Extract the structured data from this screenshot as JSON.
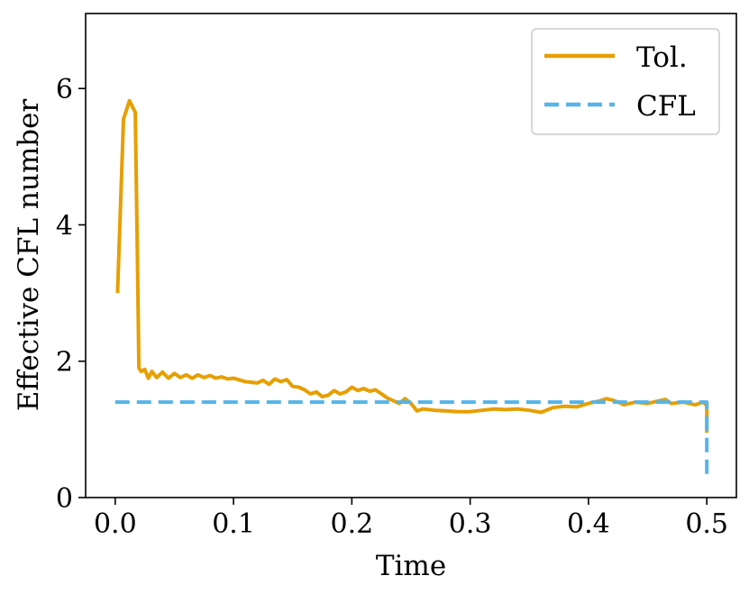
{
  "chart_data": {
    "type": "line",
    "title": "",
    "xlabel": "Time",
    "ylabel": "Effective CFL number",
    "xlim": [
      -0.025,
      0.525
    ],
    "ylim": [
      0,
      7.1
    ],
    "xticks": [
      0.0,
      0.1,
      0.2,
      0.3,
      0.4,
      0.5
    ],
    "xtick_labels": [
      "0.0",
      "0.1",
      "0.2",
      "0.3",
      "0.4",
      "0.5"
    ],
    "yticks": [
      0,
      2,
      4,
      6
    ],
    "ytick_labels": [
      "0",
      "2",
      "4",
      "6"
    ],
    "grid": false,
    "legend_position": "top-right",
    "series": [
      {
        "name": "Tol.",
        "color": "#E69F00",
        "style": "solid",
        "x": [
          0.002,
          0.007,
          0.012,
          0.017,
          0.019,
          0.02,
          0.022,
          0.025,
          0.028,
          0.031,
          0.035,
          0.04,
          0.045,
          0.05,
          0.055,
          0.06,
          0.065,
          0.07,
          0.075,
          0.08,
          0.085,
          0.09,
          0.095,
          0.1,
          0.11,
          0.12,
          0.125,
          0.13,
          0.135,
          0.14,
          0.145,
          0.15,
          0.155,
          0.16,
          0.165,
          0.17,
          0.175,
          0.18,
          0.185,
          0.19,
          0.195,
          0.2,
          0.205,
          0.21,
          0.215,
          0.22,
          0.225,
          0.23,
          0.235,
          0.24,
          0.245,
          0.25,
          0.255,
          0.26,
          0.27,
          0.28,
          0.29,
          0.3,
          0.31,
          0.32,
          0.33,
          0.34,
          0.35,
          0.36,
          0.37,
          0.38,
          0.39,
          0.4,
          0.41,
          0.415,
          0.42,
          0.425,
          0.43,
          0.44,
          0.45,
          0.46,
          0.465,
          0.47,
          0.48,
          0.49,
          0.497,
          0.5,
          0.5
        ],
        "values": [
          3.0,
          5.55,
          5.82,
          5.65,
          3.2,
          1.9,
          1.85,
          1.88,
          1.75,
          1.85,
          1.76,
          1.84,
          1.75,
          1.82,
          1.76,
          1.8,
          1.75,
          1.8,
          1.76,
          1.79,
          1.75,
          1.77,
          1.74,
          1.75,
          1.7,
          1.68,
          1.72,
          1.66,
          1.74,
          1.7,
          1.73,
          1.63,
          1.62,
          1.58,
          1.52,
          1.55,
          1.48,
          1.5,
          1.57,
          1.52,
          1.55,
          1.62,
          1.57,
          1.6,
          1.56,
          1.58,
          1.52,
          1.46,
          1.42,
          1.38,
          1.45,
          1.38,
          1.27,
          1.3,
          1.28,
          1.27,
          1.26,
          1.26,
          1.28,
          1.3,
          1.29,
          1.3,
          1.28,
          1.25,
          1.32,
          1.34,
          1.33,
          1.38,
          1.42,
          1.45,
          1.43,
          1.4,
          1.36,
          1.4,
          1.38,
          1.42,
          1.44,
          1.38,
          1.4,
          1.36,
          1.4,
          1.35,
          0.95
        ]
      },
      {
        "name": "CFL",
        "color": "#56B4E9",
        "style": "dashed",
        "x": [
          0.0,
          0.5,
          0.5
        ],
        "values": [
          1.4,
          1.4,
          0.28
        ]
      }
    ]
  }
}
